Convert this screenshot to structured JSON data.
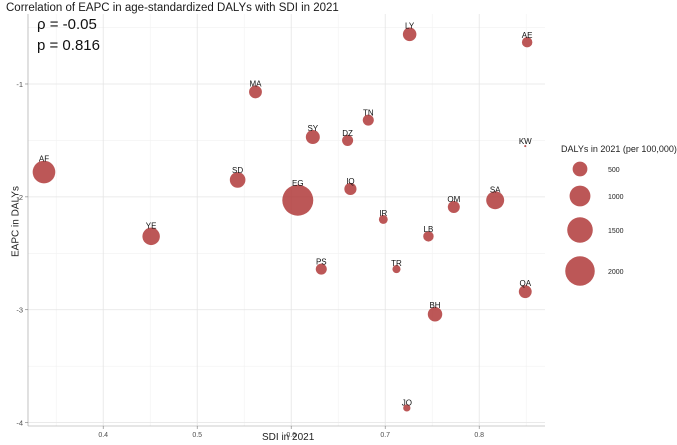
{
  "chart_data": {
    "type": "scatter",
    "title": "Correlation of EAPC in age-standardized DALYs with SDI in 2021",
    "xlabel": "SDI in 2021",
    "ylabel": "EAPC in DALYs",
    "xlim": [
      0.32,
      0.87
    ],
    "ylim": [
      -4.03,
      -0.38
    ],
    "x_ticks": [
      0.4,
      0.5,
      0.6,
      0.7,
      0.8
    ],
    "x_tick_labels": [
      "0.4",
      "0.5",
      "0.6",
      "0.7",
      "0.8"
    ],
    "y_ticks": [
      -1,
      -2,
      -3,
      -4
    ],
    "y_tick_labels": [
      "-1",
      "-2",
      "-3",
      "-4"
    ],
    "grid": true,
    "annotations": {
      "rho": "ρ = -0.05",
      "p": "p = 0.816"
    },
    "size_variable": "DALYs in 2021 (per 100,000)",
    "point_color": "#b03a3a",
    "points": [
      {
        "label": "LY",
        "x": 0.726,
        "y": -0.56,
        "size": 420
      },
      {
        "label": "AE",
        "x": 0.851,
        "y": -0.63,
        "size": 250
      },
      {
        "label": "MA",
        "x": 0.562,
        "y": -1.07,
        "size": 380
      },
      {
        "label": "TN",
        "x": 0.682,
        "y": -1.32,
        "size": 280
      },
      {
        "label": "SY",
        "x": 0.623,
        "y": -1.47,
        "size": 450
      },
      {
        "label": "DZ",
        "x": 0.66,
        "y": -1.5,
        "size": 280
      },
      {
        "label": "KW",
        "x": 0.849,
        "y": -1.55,
        "size": 10
      },
      {
        "label": "AF",
        "x": 0.337,
        "y": -1.78,
        "size": 1180
      },
      {
        "label": "SD",
        "x": 0.543,
        "y": -1.85,
        "size": 560
      },
      {
        "label": "IQ",
        "x": 0.663,
        "y": -1.93,
        "size": 340
      },
      {
        "label": "EG",
        "x": 0.607,
        "y": -2.03,
        "size": 2200
      },
      {
        "label": "SA",
        "x": 0.817,
        "y": -2.03,
        "size": 740
      },
      {
        "label": "OM",
        "x": 0.773,
        "y": -2.09,
        "size": 330
      },
      {
        "label": "IR",
        "x": 0.698,
        "y": -2.2,
        "size": 180
      },
      {
        "label": "YE",
        "x": 0.451,
        "y": -2.35,
        "size": 700
      },
      {
        "label": "LB",
        "x": 0.746,
        "y": -2.35,
        "size": 250
      },
      {
        "label": "PS",
        "x": 0.632,
        "y": -2.64,
        "size": 280
      },
      {
        "label": "TR",
        "x": 0.712,
        "y": -2.64,
        "size": 150
      },
      {
        "label": "QA",
        "x": 0.849,
        "y": -2.84,
        "size": 380
      },
      {
        "label": "BH",
        "x": 0.753,
        "y": -3.04,
        "size": 480
      },
      {
        "label": "JO",
        "x": 0.723,
        "y": -3.87,
        "size": 120
      }
    ],
    "legend": {
      "title": "DALYs in 2021 (per 100,000)",
      "position": "right",
      "entries": [
        {
          "label": "500",
          "size": 500
        },
        {
          "label": "1000",
          "size": 1000
        },
        {
          "label": "1500",
          "size": 1500
        },
        {
          "label": "2000",
          "size": 2000
        }
      ]
    }
  }
}
